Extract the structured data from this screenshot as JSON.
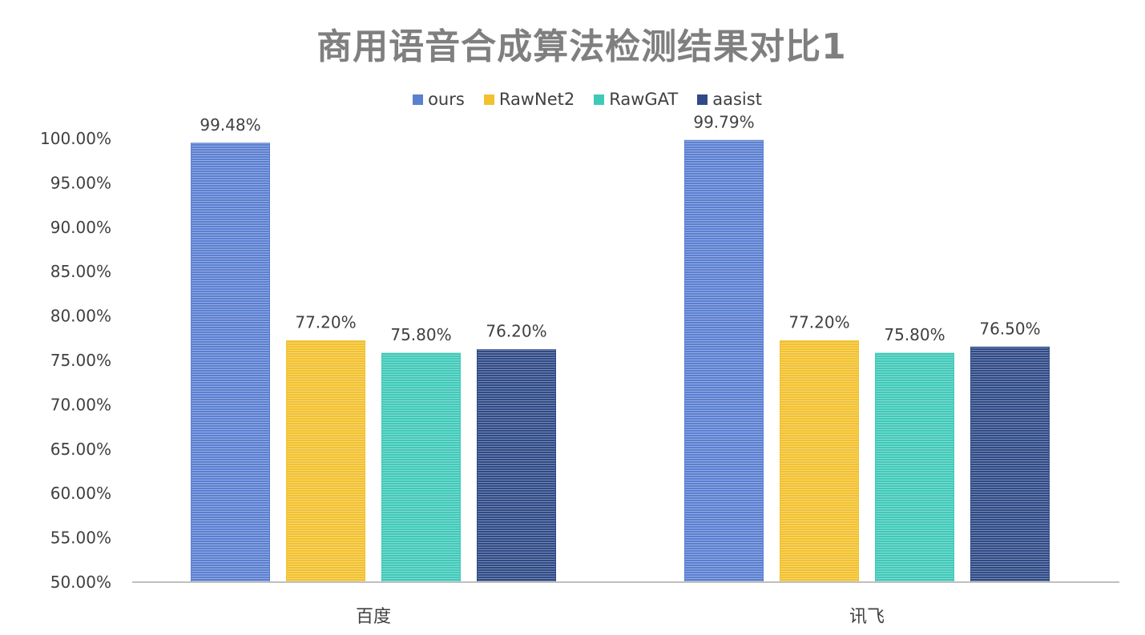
{
  "chart_data": {
    "type": "bar",
    "title": "商用语音合成算法检测结果对比1",
    "categories": [
      "百度",
      "讯飞"
    ],
    "series": [
      {
        "name": "ours",
        "color": "#5b7fd1",
        "values": [
          99.48,
          99.79
        ],
        "labels": [
          "99.48%",
          "99.79%"
        ]
      },
      {
        "name": "RawNet2",
        "color": "#f2c12e",
        "values": [
          77.2,
          77.2
        ],
        "labels": [
          "77.20%",
          "77.20%"
        ]
      },
      {
        "name": "RawGAT",
        "color": "#40c9b8",
        "values": [
          75.8,
          75.8
        ],
        "labels": [
          "75.80%",
          "75.80%"
        ]
      },
      {
        "name": "aasist",
        "color": "#2f4a86",
        "values": [
          76.2,
          76.5
        ],
        "labels": [
          "76.20%",
          "76.50%"
        ]
      }
    ],
    "ylim": [
      50,
      100
    ],
    "yticks": [
      50,
      55,
      60,
      65,
      70,
      75,
      80,
      85,
      90,
      95,
      100
    ],
    "ytick_labels": [
      "50.00%",
      "55.00%",
      "60.00%",
      "65.00%",
      "70.00%",
      "75.00%",
      "80.00%",
      "85.00%",
      "90.00%",
      "95.00%",
      "100.00%"
    ],
    "legend_position": "top",
    "grid": false,
    "xlabel": "",
    "ylabel": ""
  }
}
